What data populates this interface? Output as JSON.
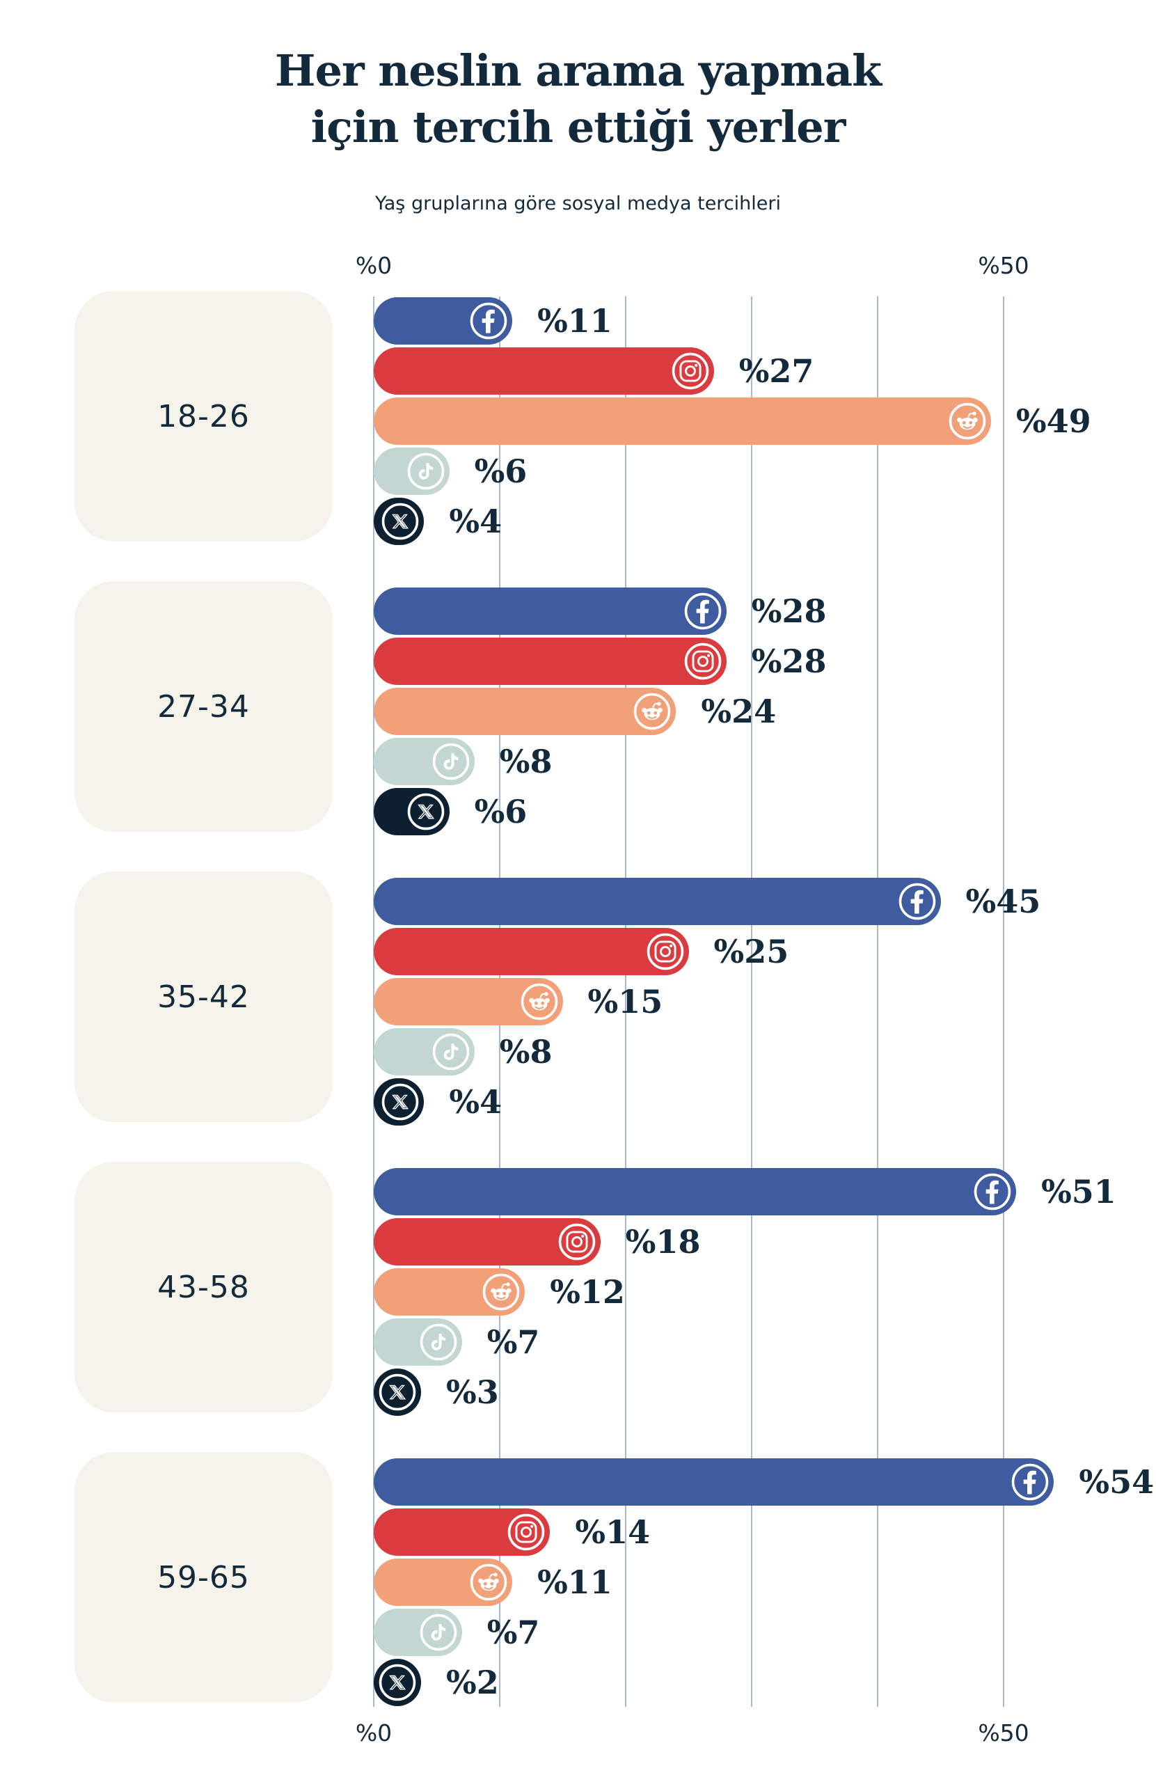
{
  "colors": {
    "background": "#ffffff",
    "text": "#13293c",
    "group_box": "#f6f3ea",
    "gridline": "#a9b8cb",
    "icon": "#ffffff"
  },
  "chart_data": {
    "type": "bar",
    "orientation": "horizontal",
    "title": "Her neslin arama yapmak için tercih ettiği yerler",
    "subtitle": "Yaş gruplarına göre sosyal medya tercihleri",
    "value_prefix": "%",
    "xlim": [
      0,
      50
    ],
    "gridline_step": 10,
    "grid": "vertical",
    "legend": "none",
    "axis_labels": {
      "min": "%0",
      "max": "%50"
    },
    "categories": [
      "18-26",
      "27-34",
      "35-42",
      "43-58",
      "59-65"
    ],
    "series": [
      {
        "name": "Facebook",
        "icon": "facebook-icon",
        "color": "#3e5c9f",
        "values": [
          11,
          28,
          45,
          51,
          54
        ]
      },
      {
        "name": "Instagram",
        "icon": "instagram-icon",
        "color": "#d93b3f",
        "values": [
          27,
          28,
          25,
          18,
          14
        ]
      },
      {
        "name": "Reddit",
        "icon": "reddit-icon",
        "color": "#f1a078",
        "values": [
          49,
          24,
          15,
          12,
          11
        ]
      },
      {
        "name": "TikTok",
        "icon": "tiktok-icon",
        "color": "#c3d6d2",
        "values": [
          6,
          8,
          8,
          7,
          7
        ]
      },
      {
        "name": "X",
        "icon": "x-icon",
        "color": "#0d202f",
        "values": [
          4,
          6,
          4,
          3,
          2
        ]
      }
    ]
  }
}
